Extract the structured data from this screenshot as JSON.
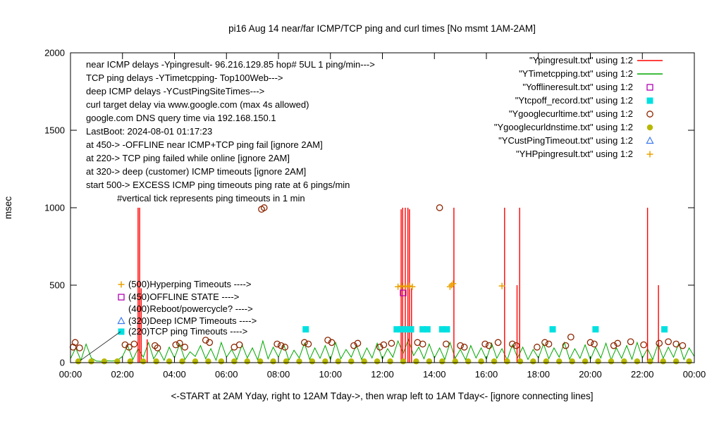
{
  "title": "pi16 Aug 14  near/far ICMP/TCP ping and curl times [No msmt 1AM-2AM]",
  "axes": {
    "y_label": "msec",
    "x_label": "<-START at 2AM Yday, right to 12AM Tday->, then wrap left to 1AM Tday<- [ignore connecting lines]",
    "y_ticks": [
      0,
      500,
      1000,
      1500,
      2000
    ],
    "x_ticks": [
      "00:00",
      "02:00",
      "04:00",
      "06:00",
      "08:00",
      "10:00",
      "12:00",
      "14:00",
      "16:00",
      "18:00",
      "20:00",
      "22:00",
      "00:00"
    ],
    "x_range_hours": [
      0,
      24
    ],
    "y_range": [
      0,
      2000
    ]
  },
  "info_lines": [
    "near ICMP delays -Ypingresult- 96.216.129.85 hop# 5UL 1 ping/min--->",
    "TCP ping delays -YTimetcpping- Top100Web--->",
    "deep ICMP delays -YCustPingSiteTimes--->",
    "curl target delay via www.google.com (max 4s allowed)",
    "google.com DNS query time via 192.168.150.1",
    "LastBoot: 2024-08-01 01:17:23",
    "at 450-> -OFFLINE near ICMP+TCP ping fail [ignore 2AM]",
    "at 220-> TCP ping failed while online [ignore 2AM]",
    "at 320-> deep (customer) ICMP timeouts [ignore 2AM]",
    "start 500-> EXCESS ICMP ping timeouts ping rate at 6 pings/min",
    "#vertical tick represents ping timeouts in 1 min"
  ],
  "callouts": [
    {
      "marker": "plus",
      "color": "#eaa000",
      "text": "(500)Hyperping Timeouts ---->"
    },
    {
      "marker": "open-square",
      "color": "#b000b0",
      "text": "(450)OFFLINE STATE ---->"
    },
    {
      "marker": "none",
      "color": "",
      "text": "(400)Reboot/powercycle? ---->"
    },
    {
      "marker": "open-triangle",
      "color": "#3c78f0",
      "text": "(320)Deep ICMP Timeouts ---->"
    },
    {
      "marker": "filled-square",
      "color": "#00e0e0",
      "text": "(220)TCP ping Timeouts ---->"
    }
  ],
  "chart_data": {
    "type": "line",
    "x_unit": "hours since 00:00",
    "xlim": [
      0,
      24
    ],
    "ylim": [
      0,
      2000
    ],
    "grid": false,
    "legend_position": "top-right",
    "series": [
      {
        "name": "Ypingresult",
        "label": "\"Ypingresult.txt\" using 1:2",
        "style": "impulse",
        "color": "#ff0000",
        "points": [
          [
            2.6,
            1000
          ],
          [
            2.66,
            1000
          ],
          [
            2.72,
            480
          ],
          [
            2.95,
            150
          ],
          [
            12.72,
            990
          ],
          [
            12.78,
            1000
          ],
          [
            12.88,
            1000
          ],
          [
            12.98,
            1000
          ],
          [
            13.04,
            990
          ],
          [
            13.12,
            480
          ],
          [
            14.75,
            1000
          ],
          [
            16.7,
            1000
          ],
          [
            17.18,
            500
          ],
          [
            17.28,
            1000
          ],
          [
            22.2,
            1000
          ],
          [
            22.62,
            500
          ]
        ]
      },
      {
        "name": "YTimetcpping",
        "label": "\"YTimetcpping.txt\" using 1:2",
        "style": "line",
        "color": "#00a800",
        "t0": 0,
        "dt": 0.2,
        "values": [
          25,
          95,
          15,
          120,
          30,
          10,
          8,
          12,
          10,
          15,
          40,
          110,
          20,
          90,
          35,
          130,
          25,
          80,
          15,
          100,
          30,
          120,
          20,
          70,
          40,
          110,
          25,
          90,
          15,
          130,
          35,
          85,
          20,
          115,
          30,
          95,
          18,
          140,
          25,
          100,
          35,
          120,
          15,
          80,
          30,
          125,
          20,
          95,
          28,
          110,
          18,
          130,
          25,
          85,
          35,
          115,
          20,
          95,
          30,
          125,
          22,
          90,
          35,
          140,
          60,
          150,
          45,
          100,
          25,
          120,
          30,
          95,
          20,
          130,
          28,
          85,
          18,
          110,
          30,
          95,
          22,
          125,
          28,
          90,
          18,
          115,
          32,
          100,
          20,
          85,
          30,
          120,
          25,
          95,
          35,
          130,
          22,
          90,
          28,
          115,
          20,
          100,
          30,
          125,
          18,
          95,
          28,
          110,
          22,
          130,
          30,
          90,
          20,
          120,
          28,
          100,
          35,
          125,
          20,
          95,
          40
        ]
      },
      {
        "name": "Yofflineresult",
        "label": "\"Yofflineresult.txt\" using 1:2",
        "style": "scatter",
        "marker": "open-square",
        "color": "#b000b0",
        "points": [
          [
            12.8,
            450
          ]
        ]
      },
      {
        "name": "Ytcpoff_record",
        "label": "\"Ytcpoff_record.txt\" using 1:2",
        "style": "scatter",
        "marker": "filled-square",
        "color": "#00e0e0",
        "points": [
          [
            9.05,
            215
          ],
          [
            12.55,
            215
          ],
          [
            12.73,
            215
          ],
          [
            12.9,
            215
          ],
          [
            13.1,
            215
          ],
          [
            13.55,
            215
          ],
          [
            13.73,
            215
          ],
          [
            14.3,
            215
          ],
          [
            14.48,
            215
          ],
          [
            18.55,
            215
          ],
          [
            20.2,
            215
          ],
          [
            22.85,
            215
          ]
        ]
      },
      {
        "name": "Ygooglecurltime",
        "label": "\"Ygooglecurltime.txt\" using 1:2",
        "style": "scatter",
        "marker": "open-circle",
        "color": "#8b2500",
        "points": [
          [
            0.1,
            100
          ],
          [
            0.18,
            130
          ],
          [
            0.35,
            95
          ],
          [
            2.1,
            115
          ],
          [
            2.25,
            100
          ],
          [
            2.45,
            120
          ],
          [
            3.25,
            110
          ],
          [
            3.35,
            95
          ],
          [
            4.05,
            115
          ],
          [
            4.2,
            125
          ],
          [
            4.4,
            100
          ],
          [
            5.2,
            145
          ],
          [
            5.35,
            130
          ],
          [
            6.3,
            100
          ],
          [
            6.5,
            115
          ],
          [
            7.35,
            990
          ],
          [
            7.45,
            1000
          ],
          [
            7.95,
            120
          ],
          [
            8.1,
            110
          ],
          [
            8.25,
            100
          ],
          [
            9.0,
            130
          ],
          [
            9.15,
            120
          ],
          [
            9.9,
            145
          ],
          [
            10.05,
            130
          ],
          [
            10.9,
            110
          ],
          [
            11.05,
            125
          ],
          [
            11.9,
            100
          ],
          [
            12.05,
            115
          ],
          [
            12.35,
            125
          ],
          [
            13.35,
            130
          ],
          [
            13.55,
            120
          ],
          [
            14.2,
            1000
          ],
          [
            14.45,
            120
          ],
          [
            15.0,
            110
          ],
          [
            15.15,
            100
          ],
          [
            15.95,
            120
          ],
          [
            16.1,
            110
          ],
          [
            16.45,
            130
          ],
          [
            17.0,
            120
          ],
          [
            17.15,
            110
          ],
          [
            17.95,
            100
          ],
          [
            18.25,
            130
          ],
          [
            18.4,
            120
          ],
          [
            19.05,
            110
          ],
          [
            19.25,
            165
          ],
          [
            20.0,
            130
          ],
          [
            20.15,
            120
          ],
          [
            20.9,
            110
          ],
          [
            21.05,
            125
          ],
          [
            21.55,
            135
          ],
          [
            22.05,
            115
          ],
          [
            22.65,
            125
          ],
          [
            23.0,
            135
          ],
          [
            23.3,
            120
          ],
          [
            23.55,
            110
          ]
        ]
      },
      {
        "name": "Ygooglecurldnstime",
        "label": "\"Ygooglecurldnstime.txt\" using 1:2",
        "style": "scatter",
        "marker": "filled-circle",
        "color": "#b8b800",
        "points": [
          [
            0.3,
            8
          ],
          [
            0.8,
            8
          ],
          [
            1.3,
            8
          ],
          [
            1.8,
            8
          ],
          [
            2.3,
            8
          ],
          [
            2.8,
            8
          ],
          [
            3.3,
            8
          ],
          [
            3.8,
            8
          ],
          [
            4.3,
            8
          ],
          [
            4.8,
            8
          ],
          [
            5.3,
            8
          ],
          [
            5.8,
            8
          ],
          [
            6.3,
            8
          ],
          [
            6.8,
            8
          ],
          [
            7.3,
            8
          ],
          [
            7.8,
            8
          ],
          [
            8.3,
            8
          ],
          [
            8.8,
            8
          ],
          [
            9.3,
            8
          ],
          [
            9.8,
            8
          ],
          [
            10.3,
            8
          ],
          [
            10.8,
            8
          ],
          [
            11.3,
            8
          ],
          [
            11.8,
            8
          ],
          [
            12.3,
            8
          ],
          [
            12.8,
            8
          ],
          [
            13.3,
            8
          ],
          [
            13.8,
            8
          ],
          [
            14.3,
            8
          ],
          [
            14.8,
            8
          ],
          [
            15.3,
            8
          ],
          [
            15.8,
            8
          ],
          [
            16.3,
            8
          ],
          [
            16.8,
            8
          ],
          [
            17.3,
            8
          ],
          [
            17.8,
            8
          ],
          [
            18.3,
            8
          ],
          [
            18.8,
            8
          ],
          [
            19.3,
            8
          ],
          [
            19.8,
            8
          ],
          [
            20.3,
            8
          ],
          [
            20.8,
            8
          ],
          [
            21.3,
            8
          ],
          [
            21.8,
            8
          ],
          [
            22.3,
            8
          ],
          [
            22.8,
            8
          ],
          [
            23.3,
            8
          ],
          [
            23.8,
            8
          ]
        ]
      },
      {
        "name": "YCustPingTimeout",
        "label": "\"YCustPingTimeout.txt\" using 1:2",
        "style": "scatter",
        "marker": "open-triangle",
        "color": "#3c78f0",
        "points": []
      },
      {
        "name": "YHPpingresult",
        "label": "\"YHPpingresult.txt\" using 1:2",
        "style": "scatter",
        "marker": "plus",
        "color": "#eaa000",
        "points": [
          [
            12.6,
            490
          ],
          [
            12.75,
            495
          ],
          [
            12.9,
            490
          ],
          [
            13.05,
            495
          ],
          [
            13.15,
            490
          ],
          [
            14.6,
            490
          ],
          [
            14.66,
            500
          ],
          [
            14.72,
            510
          ],
          [
            16.6,
            495
          ]
        ]
      }
    ]
  }
}
